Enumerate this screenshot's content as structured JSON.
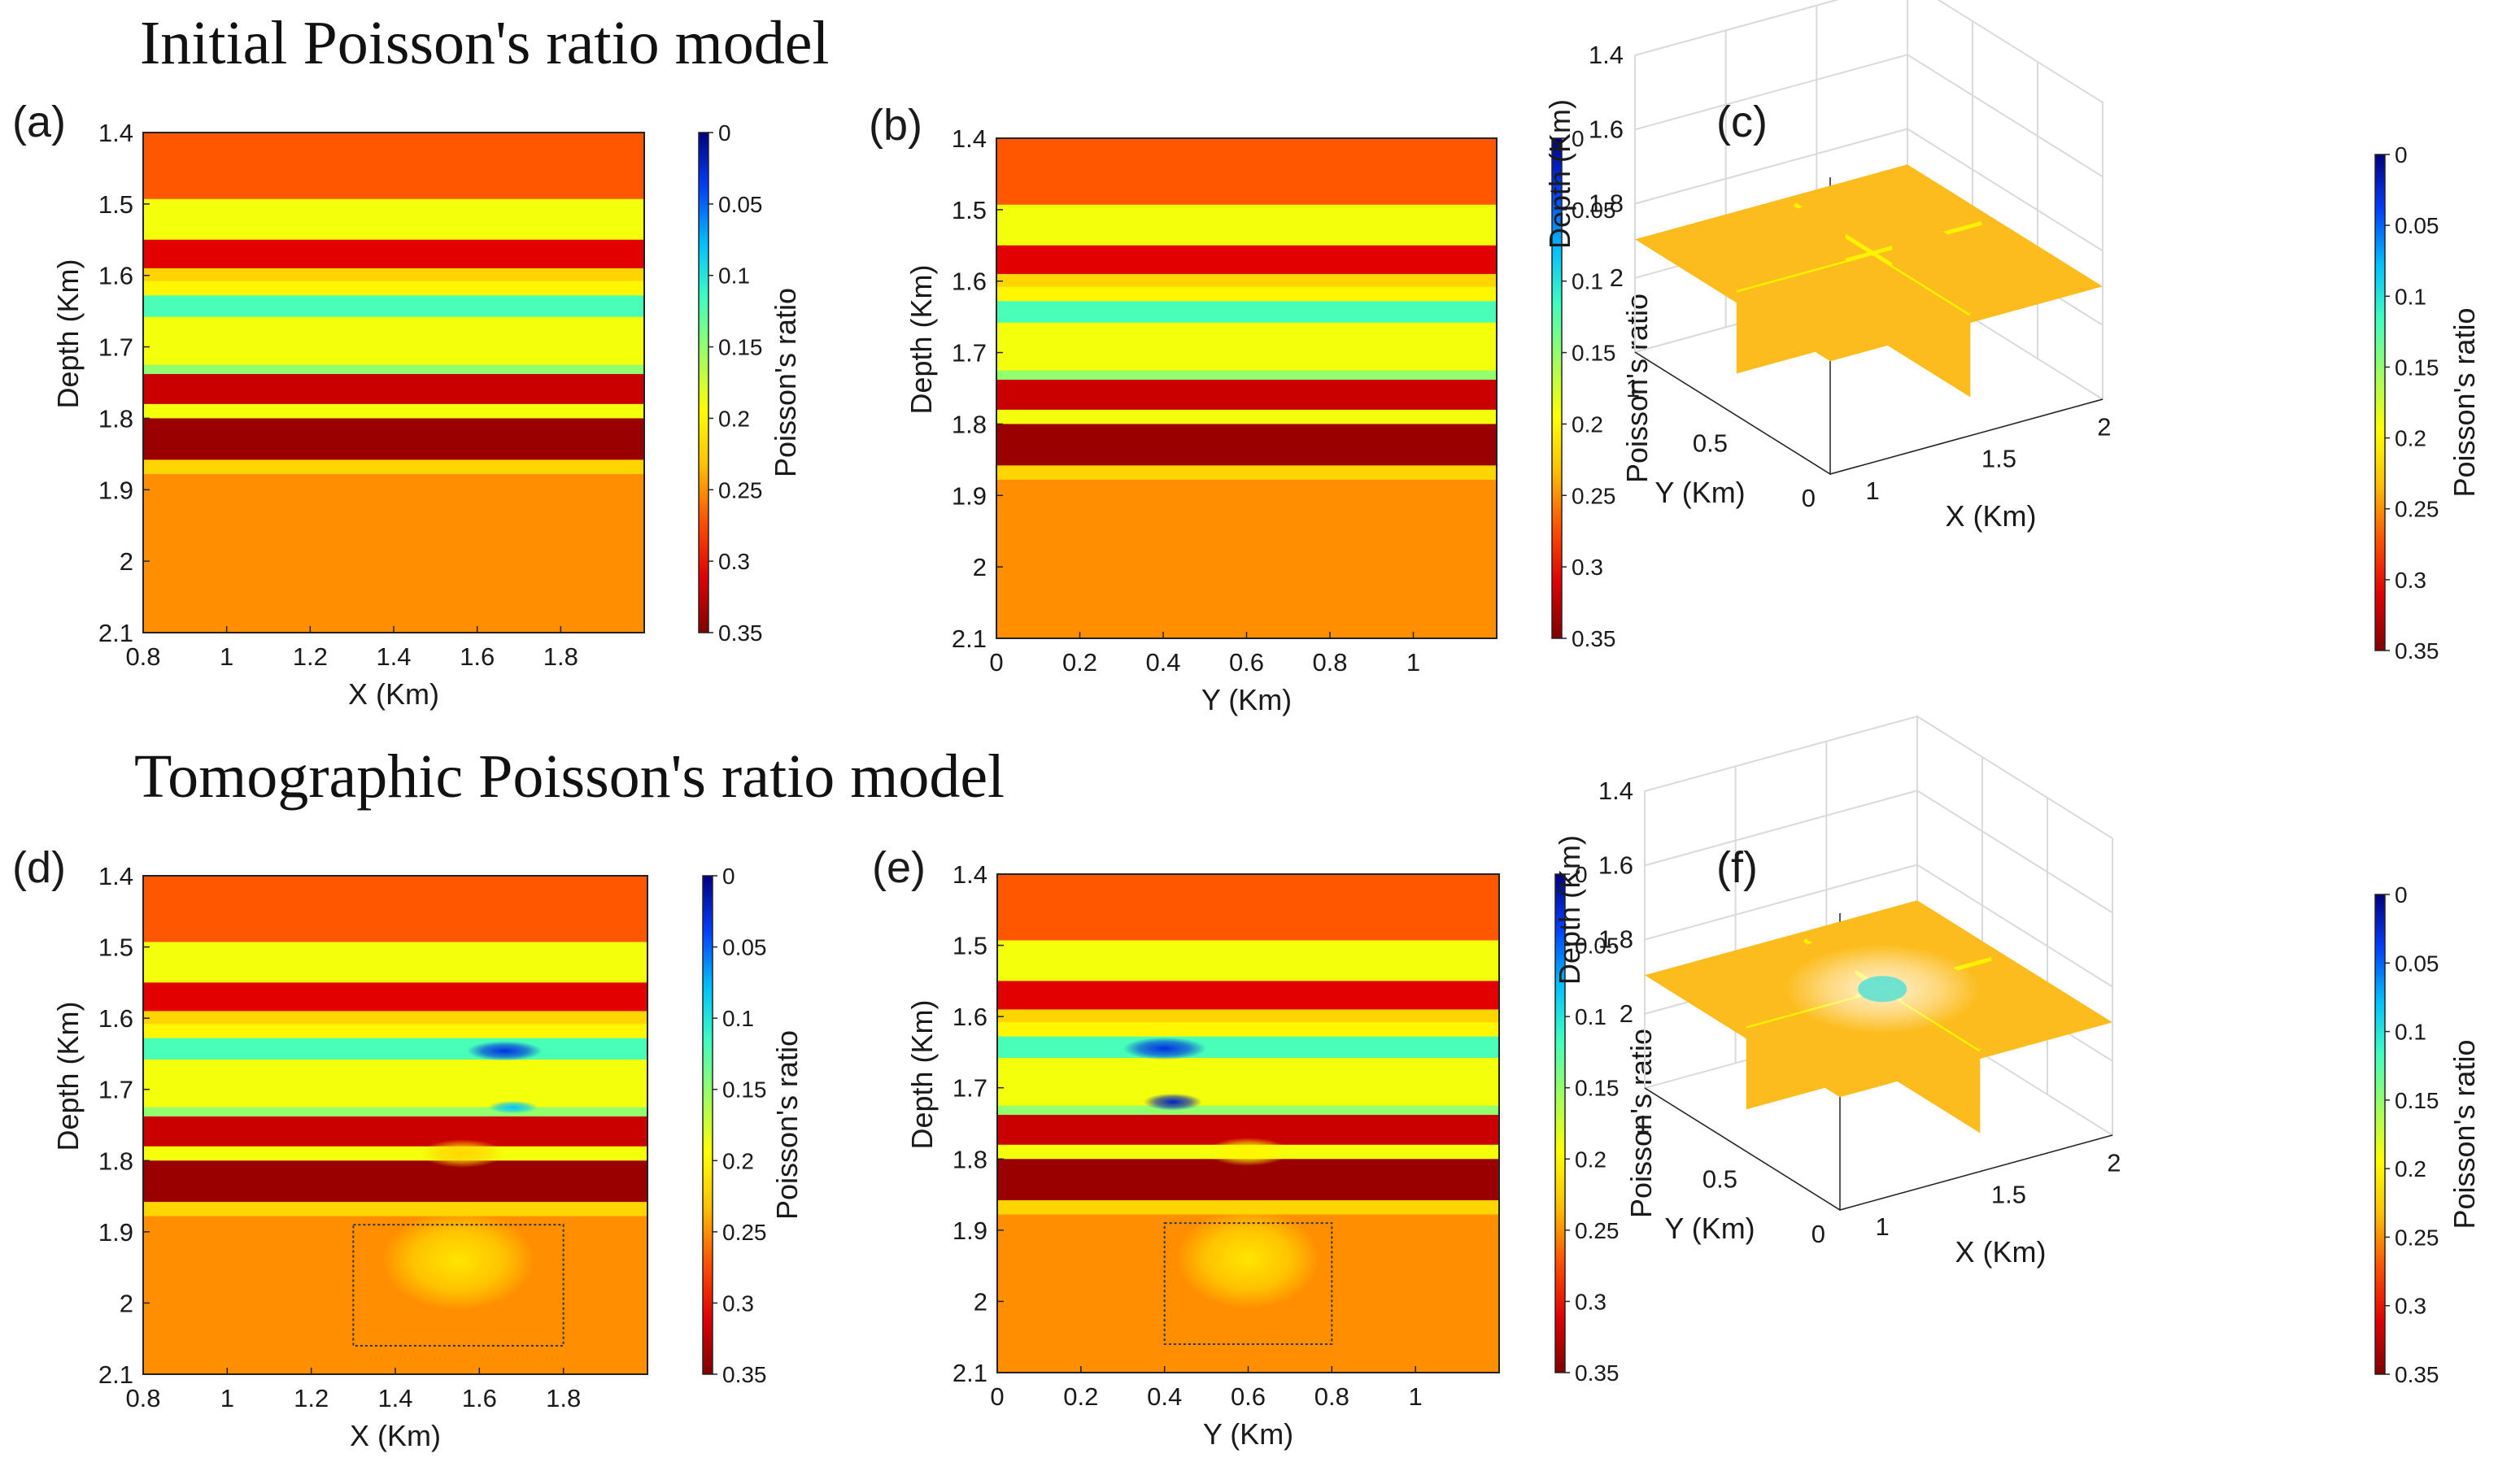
{
  "titles": {
    "top": "Initial Poisson's ratio model",
    "bottom": "Tomographic Poisson's ratio model"
  },
  "colors": {
    "scale": [
      "#00007f",
      "#0040ff",
      "#00c0ff",
      "#40ffbf",
      "#a0ff60",
      "#ffff00",
      "#ffbf00",
      "#ff5000",
      "#e00000",
      "#800000"
    ],
    "layer_orange": "#fb8119",
    "layer_green": "#a6ff5c",
    "layer_red": "#ee1c10",
    "layer_yellow_orange": "#fdc417",
    "layer_cyan": "#25b5ff",
    "layer_darkred": "#a50505",
    "background": "#fcbc1d"
  },
  "chart_data": [
    {
      "id": "a",
      "label": "(a)",
      "type": "heatmap",
      "xlabel": "X (Km)",
      "ylabel": "Depth (Km)",
      "colorbar_label": "Poisson's ratio",
      "xlim": [
        0.8,
        2.0
      ],
      "ylim": [
        1.4,
        2.1
      ],
      "xticks": [
        "0.8",
        "1",
        "1.2",
        "1.4",
        "1.6",
        "1.8"
      ],
      "yticks": [
        "1.4",
        "1.5",
        "1.6",
        "1.7",
        "1.8",
        "1.9",
        "2",
        "2.1"
      ],
      "colorbar_ticks": [
        "0",
        "0.05",
        "0.1",
        "0.15",
        "0.2",
        "0.25",
        "0.3",
        "0.35"
      ],
      "colorbar_range": [
        0,
        0.35
      ]
    },
    {
      "id": "b",
      "label": "(b)",
      "type": "heatmap",
      "xlabel": "Y (Km)",
      "ylabel": "Depth (Km)",
      "colorbar_label": "Poisson's ratio",
      "xlim": [
        0,
        1.2
      ],
      "ylim": [
        1.4,
        2.1
      ],
      "xticks": [
        "0",
        "0.2",
        "0.4",
        "0.6",
        "0.8",
        "1"
      ],
      "yticks": [
        "1.4",
        "1.5",
        "1.6",
        "1.7",
        "1.8",
        "1.9",
        "2",
        "2.1"
      ],
      "colorbar_ticks": [
        "0",
        "0.05",
        "0.1",
        "0.15",
        "0.2",
        "0.25",
        "0.3",
        "0.35"
      ],
      "colorbar_range": [
        0,
        0.35
      ]
    },
    {
      "id": "c",
      "label": "(c)",
      "type": "3d-slices",
      "xlabel": "X (Km)",
      "ylabel": "Y (Km)",
      "zlabel": "Depth (Km)",
      "colorbar_label": "Poisson's ratio",
      "zticks": [
        "1.4",
        "1.6",
        "1.8",
        "2"
      ],
      "yticks": [
        "0",
        "0.5",
        "1"
      ],
      "xticks": [
        "1",
        "1.5",
        "2"
      ],
      "colorbar_ticks": [
        "0",
        "0.05",
        "0.1",
        "0.15",
        "0.2",
        "0.25",
        "0.3",
        "0.35"
      ],
      "colorbar_range": [
        0,
        0.35
      ]
    },
    {
      "id": "d",
      "label": "(d)",
      "type": "heatmap",
      "xlabel": "X (Km)",
      "ylabel": "Depth (Km)",
      "colorbar_label": "Poisson's ratio",
      "xlim": [
        0.8,
        2.0
      ],
      "ylim": [
        1.4,
        2.1
      ],
      "xticks": [
        "0.8",
        "1",
        "1.2",
        "1.4",
        "1.6",
        "1.8"
      ],
      "yticks": [
        "1.4",
        "1.5",
        "1.6",
        "1.7",
        "1.8",
        "1.9",
        "2",
        "2.1"
      ],
      "colorbar_ticks": [
        "0",
        "0.05",
        "0.1",
        "0.15",
        "0.2",
        "0.25",
        "0.3",
        "0.35"
      ],
      "colorbar_range": [
        0,
        0.35
      ],
      "target_box": {
        "x": [
          1.3,
          1.8
        ],
        "depth": [
          1.89,
          2.06
        ]
      }
    },
    {
      "id": "e",
      "label": "(e)",
      "type": "heatmap",
      "xlabel": "Y (Km)",
      "ylabel": "Depth (Km)",
      "colorbar_label": "Poisson's ratio",
      "xlim": [
        0,
        1.2
      ],
      "ylim": [
        1.4,
        2.1
      ],
      "xticks": [
        "0",
        "0.2",
        "0.4",
        "0.6",
        "0.8",
        "1"
      ],
      "yticks": [
        "1.4",
        "1.5",
        "1.6",
        "1.7",
        "1.8",
        "1.9",
        "2",
        "2.1"
      ],
      "colorbar_ticks": [
        "0",
        "0.05",
        "0.1",
        "0.15",
        "0.2",
        "0.25",
        "0.3",
        "0.35"
      ],
      "colorbar_range": [
        0,
        0.35
      ],
      "target_box": {
        "x": [
          0.4,
          0.8
        ],
        "depth": [
          1.89,
          2.06
        ]
      }
    },
    {
      "id": "f",
      "label": "(f)",
      "type": "3d-slices",
      "xlabel": "X (Km)",
      "ylabel": "Y (Km)",
      "zlabel": "Depth (Km)",
      "colorbar_label": "Poisson's ratio",
      "zticks": [
        "1.4",
        "1.6",
        "1.8",
        "2"
      ],
      "yticks": [
        "0",
        "0.5",
        "1"
      ],
      "xticks": [
        "1",
        "1.5",
        "2"
      ],
      "colorbar_ticks": [
        "0",
        "0.05",
        "0.1",
        "0.15",
        "0.2",
        "0.25",
        "0.3",
        "0.35"
      ],
      "colorbar_range": [
        0,
        0.35
      ]
    }
  ],
  "model_layers": [
    {
      "top": 1.4,
      "bottom": 1.493,
      "value": 0.27
    },
    {
      "top": 1.493,
      "bottom": 1.55,
      "value": 0.19
    },
    {
      "top": 1.55,
      "bottom": 1.59,
      "value": 0.31
    },
    {
      "top": 1.59,
      "bottom": 1.608,
      "value": 0.22
    },
    {
      "top": 1.608,
      "bottom": 1.628,
      "value": 0.2
    },
    {
      "top": 1.628,
      "bottom": 1.658,
      "value": 0.12
    },
    {
      "top": 1.658,
      "bottom": 1.725,
      "value": 0.19
    },
    {
      "top": 1.725,
      "bottom": 1.738,
      "value": 0.15
    },
    {
      "top": 1.738,
      "bottom": 1.78,
      "value": 0.32
    },
    {
      "top": 1.78,
      "bottom": 1.8,
      "value": 0.19
    },
    {
      "top": 1.8,
      "bottom": 1.858,
      "value": 0.34
    },
    {
      "top": 1.858,
      "bottom": 1.878,
      "value": 0.22
    },
    {
      "top": 1.878,
      "bottom": 2.1,
      "value": 0.25
    }
  ],
  "tomo_anomalies": [
    {
      "panel": "d",
      "cx": 1.66,
      "cy": 1.646,
      "rx": 0.09,
      "ry": 0.014,
      "value": 0.03
    },
    {
      "panel": "d",
      "cx": 1.68,
      "cy": 1.725,
      "rx": 0.06,
      "ry": 0.009,
      "value": 0.08
    },
    {
      "panel": "d",
      "cx": 1.56,
      "cy": 1.79,
      "rx": 0.1,
      "ry": 0.02,
      "value": 0.22
    },
    {
      "panel": "d",
      "cx": 1.55,
      "cy": 1.94,
      "rx": 0.18,
      "ry": 0.07,
      "value": 0.21
    },
    {
      "panel": "e",
      "cx": 0.4,
      "cy": 1.645,
      "rx": 0.1,
      "ry": 0.016,
      "value": 0.03
    },
    {
      "panel": "e",
      "cx": 0.42,
      "cy": 1.72,
      "rx": 0.07,
      "ry": 0.012,
      "value": 0.02
    },
    {
      "panel": "e",
      "cx": 0.6,
      "cy": 1.79,
      "rx": 0.1,
      "ry": 0.02,
      "value": 0.2
    },
    {
      "panel": "e",
      "cx": 0.6,
      "cy": 1.94,
      "rx": 0.17,
      "ry": 0.07,
      "value": 0.21
    }
  ]
}
